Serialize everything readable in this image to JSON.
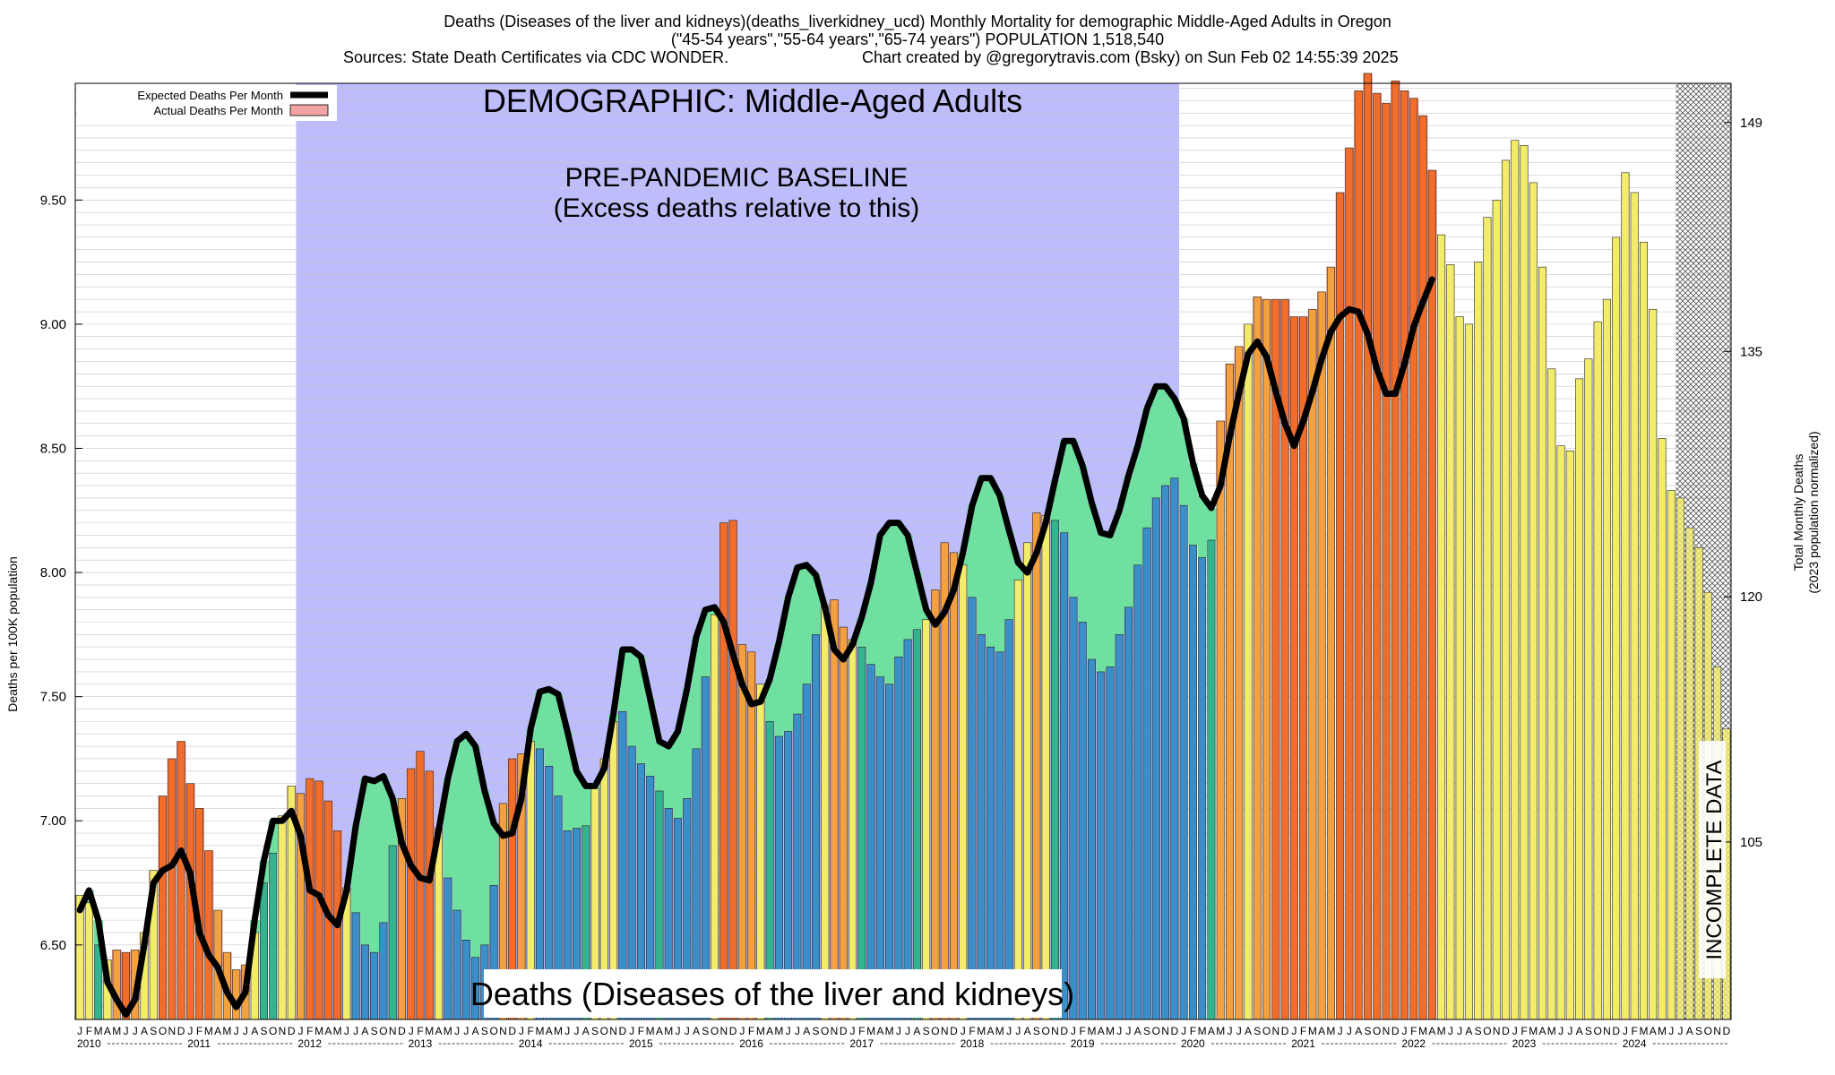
{
  "title_lines": [
    "Deaths (Diseases of the liver and kidneys)(deaths_liverkidney_ucd) Monthly Mortality for demographic Middle-Aged Adults in Oregon",
    "(\"45-54 years\",\"55-64 years\",\"65-74 years\") POPULATION 1,518,540"
  ],
  "sources_text": "Sources: State Death Certificates via CDC WONDER.",
  "credit_text": "Chart created by @gregorytravis.com (Bsky) on Sun Feb 02 14:55:39 2025",
  "demographic_label": "DEMOGRAPHIC: Middle-Aged Adults",
  "baseline_label_1": "PRE-PANDEMIC BASELINE",
  "baseline_label_2": "(Excess deaths relative to this)",
  "cause_label": "Deaths (Diseases of the liver and kidneys)",
  "incomplete_label": "INCOMPLETE DATA",
  "legend": {
    "expected": "Expected Deaths Per Month",
    "actual": "Actual Deaths Per Month"
  },
  "y_left_label": "Deaths per 100K population",
  "y_right_label_1": "Total Monthly Deaths",
  "y_right_label_2": "(2023 population normalized)",
  "colors": {
    "baseline_region": "#bdbdfd",
    "expected_line": "#000000",
    "excess_fill": "#f4a3a3",
    "deficit_fill": "#6fe0a0",
    "bar_low": "#f2ec6a",
    "bar_mid": "#f2a040",
    "bar_high": "#f06d2b",
    "bar_blue": "#3b8fc8",
    "bar_green": "#34b38f"
  },
  "chart_data": {
    "type": "bar",
    "title": "Deaths (Diseases of the liver and kidneys)(deaths_liverkidney_ucd) Monthly Mortality for demographic Middle-Aged Adults in Oregon",
    "ylabel": "Deaths per 100K population",
    "ylabel_right": "Total Monthly Deaths (2023 population normalized)",
    "ylim": [
      6.2,
      9.97
    ],
    "yticks": [
      "6.50",
      "7.00",
      "7.50",
      "8.00",
      "8.50",
      "9.00",
      "9.50"
    ],
    "yticks_right": [
      "105",
      "120",
      "135",
      "149"
    ],
    "month_letters": [
      "J",
      "F",
      "M",
      "A",
      "M",
      "J",
      "J",
      "A",
      "S",
      "O",
      "N",
      "D"
    ],
    "years": [
      "2010",
      "2011",
      "2012",
      "2013",
      "2014",
      "2015",
      "2016",
      "2017",
      "2018",
      "2019",
      "2020",
      "2021",
      "2022",
      "2023",
      "2024"
    ],
    "baseline_start": "2012-01",
    "baseline_end": "2019-12",
    "incomplete_start": "2024-07",
    "grid": true,
    "legend_position": "top-left",
    "series": [
      {
        "name": "Actual Deaths Per Month",
        "values": [
          6.7,
          6.67,
          6.5,
          6.44,
          6.48,
          6.47,
          6.48,
          6.55,
          6.8,
          7.1,
          7.25,
          7.32,
          7.15,
          7.05,
          6.88,
          6.64,
          6.47,
          6.4,
          6.42,
          6.55,
          6.75,
          6.87,
          7.02,
          7.14,
          7.11,
          7.17,
          7.16,
          7.08,
          6.96,
          6.73,
          6.63,
          6.5,
          6.47,
          6.59,
          6.9,
          7.09,
          7.21,
          7.28,
          7.2,
          6.97,
          6.77,
          6.64,
          6.52,
          6.45,
          6.5,
          6.74,
          7.07,
          7.25,
          7.27,
          7.32,
          7.29,
          7.22,
          7.1,
          6.96,
          6.97,
          6.98,
          7.13,
          7.25,
          7.4,
          7.44,
          7.3,
          7.23,
          7.18,
          7.12,
          7.05,
          7.01,
          7.09,
          7.29,
          7.58,
          7.83,
          8.2,
          8.21,
          7.71,
          7.68,
          7.55,
          7.4,
          7.34,
          7.36,
          7.43,
          7.55,
          7.75,
          7.87,
          7.89,
          7.78,
          7.73,
          7.7,
          7.63,
          7.58,
          7.55,
          7.66,
          7.73,
          7.77,
          7.81,
          7.93,
          8.12,
          8.08,
          8.03,
          7.9,
          7.75,
          7.7,
          7.68,
          7.81,
          7.97,
          8.12,
          8.24,
          8.23,
          8.21,
          8.16,
          7.9,
          7.8,
          7.65,
          7.6,
          7.62,
          7.75,
          7.86,
          8.03,
          8.18,
          8.3,
          8.35,
          8.38,
          8.27,
          8.11,
          8.06,
          8.13,
          8.61,
          8.84,
          8.91,
          9.0,
          9.11,
          9.1,
          9.1,
          9.1,
          9.03,
          9.03,
          9.06,
          9.13,
          9.23,
          9.53,
          9.71,
          9.94,
          10.01,
          9.93,
          9.89,
          9.98,
          9.94,
          9.91,
          9.84,
          9.62,
          9.36,
          9.24,
          9.03,
          9.0,
          9.25,
          9.43,
          9.5,
          9.66,
          9.74,
          9.72,
          9.57,
          9.23,
          8.82,
          8.51,
          8.49,
          8.78,
          8.86,
          9.01,
          9.1,
          9.35,
          9.61,
          9.53,
          9.33,
          9.06,
          8.54,
          8.33,
          8.3,
          8.18,
          8.1,
          7.92,
          7.62,
          7.37
        ]
      },
      {
        "name": "Expected Deaths Per Month",
        "values": [
          6.64,
          6.72,
          6.6,
          6.35,
          6.28,
          6.22,
          6.28,
          6.5,
          6.75,
          6.8,
          6.82,
          6.88,
          6.79,
          6.55,
          6.46,
          6.41,
          6.31,
          6.25,
          6.31,
          6.6,
          6.84,
          7.0,
          7.0,
          7.04,
          6.94,
          6.72,
          6.7,
          6.62,
          6.58,
          6.72,
          6.98,
          7.17,
          7.16,
          7.18,
          7.09,
          6.91,
          6.82,
          6.77,
          6.76,
          6.96,
          7.17,
          7.32,
          7.35,
          7.3,
          7.12,
          6.99,
          6.94,
          6.95,
          7.09,
          7.37,
          7.52,
          7.53,
          7.51,
          7.36,
          7.2,
          7.14,
          7.14,
          7.21,
          7.43,
          7.69,
          7.69,
          7.66,
          7.49,
          7.32,
          7.3,
          7.36,
          7.53,
          7.74,
          7.85,
          7.86,
          7.8,
          7.67,
          7.55,
          7.47,
          7.48,
          7.57,
          7.72,
          7.9,
          8.02,
          8.03,
          7.99,
          7.86,
          7.69,
          7.65,
          7.71,
          7.82,
          7.96,
          8.15,
          8.2,
          8.2,
          8.15,
          8.0,
          7.85,
          7.79,
          7.84,
          7.93,
          8.08,
          8.27,
          8.38,
          8.38,
          8.31,
          8.17,
          8.04,
          8.0,
          8.08,
          8.2,
          8.37,
          8.53,
          8.53,
          8.43,
          8.28,
          8.16,
          8.15,
          8.25,
          8.39,
          8.51,
          8.66,
          8.75,
          8.75,
          8.7,
          8.62,
          8.44,
          8.31,
          8.26,
          8.35,
          8.55,
          8.72,
          8.88,
          8.93,
          8.87,
          8.73,
          8.6,
          8.51,
          8.61,
          8.73,
          8.86,
          8.97,
          9.03,
          9.06,
          9.05,
          8.96,
          8.82,
          8.72,
          8.72,
          8.84,
          8.99,
          9.09,
          9.18
        ]
      }
    ],
    "expected_start": "2010-01",
    "expected_note_series_indexes": "expected series aligned month-by-month from 2010-01"
  }
}
